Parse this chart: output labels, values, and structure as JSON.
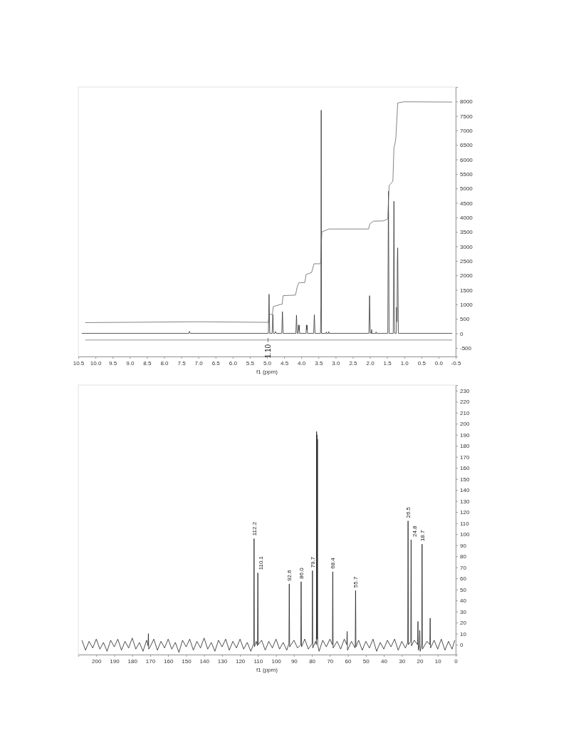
{
  "chart_data": [
    {
      "type": "line",
      "xlabel": "f1 (ppm)",
      "xlim": [
        10.5,
        -0.5
      ],
      "ylim": [
        -800,
        8500
      ],
      "xticks": [
        10.5,
        {
          "value": 10,
          "label": "10.0"
        },
        9.5,
        {
          "value": 9,
          "label": "9.0"
        },
        8.5,
        {
          "value": 8,
          "label": "8.0"
        },
        7.5,
        {
          "value": 7,
          "label": "7.0"
        },
        6.5,
        {
          "value": 6,
          "label": "6.0"
        },
        5.5,
        {
          "value": 5,
          "label": "5.0"
        },
        4.5,
        {
          "value": 4,
          "label": "4.0"
        },
        3.5,
        {
          "value": 3,
          "label": "3.0"
        },
        2.5,
        {
          "value": 2,
          "label": "2.0"
        },
        1.5,
        {
          "value": 1,
          "label": "1.0"
        },
        0.5,
        {
          "value": 0,
          "label": "0.0"
        },
        -0.5
      ],
      "yticks": [
        -500,
        0,
        500,
        1000,
        1500,
        2000,
        2500,
        3000,
        3500,
        4000,
        4500,
        5000,
        5500,
        6000,
        6500,
        7000,
        7500,
        8000
      ],
      "series": [
        {
          "type": "line",
          "color": "#333333",
          "x": [
            10.4,
            7.28,
            7.26,
            7.24,
            4.96,
            4.94,
            4.92,
            4.85,
            4.83,
            4.81,
            4.77,
            4.75,
            4.73,
            4.57,
            4.55,
            4.53,
            4.16,
            4.14,
            4.12,
            4.09,
            4.08,
            4.07,
            4.06,
            4.05,
            3.86,
            3.85,
            3.84,
            3.83,
            3.82,
            3.64,
            3.62,
            3.6,
            3.44,
            3.43,
            3.42,
            3.41,
            3.28,
            3.27,
            3.26,
            3.21,
            3.2,
            3.19,
            2.03,
            2.01,
            1.99,
            1.96,
            1.95,
            1.94,
            1.83,
            1.82,
            1.81,
            1.48,
            1.46,
            1.44,
            1.32,
            1.3,
            1.28,
            1.23,
            1.22,
            1.21,
            1.2,
            1.19,
            1.17,
            -0.4
          ],
          "values": [
            0,
            0,
            70,
            0,
            0,
            1350,
            0,
            0,
            650,
            0,
            0,
            60,
            0,
            0,
            750,
            0,
            0,
            630,
            0,
            0,
            290,
            100,
            280,
            0,
            0,
            290,
            120,
            280,
            0,
            0,
            640,
            0,
            0,
            950,
            7700,
            0,
            0,
            50,
            0,
            0,
            60,
            0,
            0,
            1300,
            0,
            0,
            130,
            0,
            0,
            50,
            0,
            0,
            4900,
            0,
            0,
            4560,
            0,
            0,
            900,
            400,
            2500,
            2950,
            0,
            0
          ]
        },
        {
          "type": "line",
          "color": "#666666",
          "x": [
            10.3,
            7,
            5,
            4.96,
            4.93,
            4.84,
            4.82,
            4.6,
            4.56,
            4.53,
            4.17,
            4.12,
            4.07,
            3.9,
            3.86,
            3.7,
            3.63,
            3.44,
            3.4,
            3.2,
            2.04,
            2,
            1.9,
            1.6,
            1.48,
            1.44,
            1.33,
            1.3,
            1.26,
            1.24,
            1.19,
            1,
            -0.4
          ],
          "values": [
            370,
            400,
            380,
            380,
            650,
            660,
            920,
            1000,
            1000,
            1300,
            1320,
            1600,
            1750,
            1750,
            2030,
            2100,
            2400,
            2400,
            3500,
            3600,
            3600,
            3780,
            3870,
            3880,
            3950,
            5100,
            5250,
            6400,
            6600,
            6800,
            7950,
            7990,
            7980
          ]
        },
        {
          "type": "line",
          "color": "#777777",
          "x": [
            10.3,
            -0.4
          ],
          "values": [
            -230,
            -230
          ]
        }
      ],
      "annotations": [
        {
          "text": "1.10",
          "x": 4.97,
          "y": -230
        }
      ]
    },
    {
      "type": "line",
      "xlabel": "f1 (ppm)",
      "xlim": [
        210,
        0
      ],
      "ylim": [
        -9,
        235
      ],
      "xticks": [
        200,
        190,
        180,
        170,
        160,
        150,
        140,
        130,
        120,
        110,
        100,
        90,
        80,
        70,
        60,
        50,
        40,
        30,
        20,
        10,
        0
      ],
      "yticks": [
        0,
        10,
        20,
        30,
        40,
        50,
        60,
        70,
        80,
        90,
        100,
        110,
        120,
        130,
        140,
        150,
        160,
        170,
        180,
        190,
        200,
        210,
        220,
        230
      ],
      "series": [
        {
          "type": "line",
          "color": "#222222",
          "x": [
            208,
            206,
            204,
            202,
            200,
            198,
            196,
            194,
            192,
            190,
            188,
            186,
            184,
            182,
            180,
            178,
            176,
            174,
            172,
            171.2,
            171,
            170.8,
            170,
            168,
            166,
            164,
            162,
            160,
            158,
            156,
            154,
            152,
            150,
            148,
            146,
            144,
            142,
            140,
            138,
            136,
            134,
            132,
            130,
            128,
            126,
            124,
            122,
            120,
            118,
            116,
            114,
            112.4,
            112.2,
            112,
            111,
            110.3,
            110.1,
            109.9,
            108,
            106,
            104,
            102,
            100,
            98,
            96,
            94,
            92.8,
            92.6,
            92.4,
            90,
            88,
            86.2,
            86,
            85.8,
            84,
            82,
            79.9,
            79.7,
            79.5,
            78,
            77.5,
            77.4,
            77.3,
            77.2,
            77.1,
            76.9,
            76.8,
            76,
            74,
            72,
            70,
            68.6,
            68.4,
            68.2,
            66,
            64,
            62,
            60.6,
            60.4,
            60.2,
            58,
            56,
            55.9,
            55.7,
            55.5,
            54,
            52,
            50,
            48,
            46,
            44,
            42,
            40,
            38,
            36,
            34,
            32,
            30,
            28,
            26.7,
            26.5,
            26.3,
            25,
            24.8,
            24.6,
            23,
            21.2,
            21,
            20.8,
            20.2,
            20,
            19.8,
            18.9,
            18.7,
            18.5,
            16,
            14.4,
            14.2,
            14,
            12,
            10,
            8,
            6,
            4,
            2,
            0.5
          ],
          "values": [
            4,
            -5,
            3,
            -3,
            5,
            -4,
            2,
            -6,
            4,
            -2,
            5,
            -5,
            3,
            -3,
            6,
            -4,
            2,
            -6,
            4,
            -1,
            10,
            -4,
            -2,
            5,
            -5,
            3,
            -3,
            5,
            -4,
            2,
            -7,
            4,
            -2,
            5,
            -5,
            3,
            -3,
            6,
            -4,
            2,
            -6,
            4,
            -2,
            5,
            -5,
            3,
            -3,
            5,
            -4,
            2,
            -6,
            1,
            96,
            -2,
            3,
            -1,
            65,
            0,
            4,
            -5,
            3,
            -3,
            5,
            -4,
            2,
            -5,
            1,
            55,
            -2,
            4,
            -3,
            0,
            57,
            -2,
            5,
            -4,
            1,
            67,
            -3,
            3,
            0,
            193,
            5,
            190,
            5,
            186,
            0,
            -6,
            4,
            -2,
            5,
            0,
            66,
            -3,
            3,
            -4,
            5,
            0,
            12,
            -5,
            3,
            -3,
            0,
            49,
            -2,
            4,
            -5,
            3,
            -3,
            5,
            -6,
            2,
            -4,
            4,
            -2,
            5,
            -5,
            3,
            -3,
            2,
            112,
            0,
            3,
            95,
            -1,
            4,
            0,
            21,
            -5,
            0,
            13,
            -6,
            0,
            91,
            -4,
            3,
            0,
            24,
            -3,
            4,
            -4,
            5,
            -5,
            3,
            -4,
            4
          ]
        }
      ],
      "annotations": [
        {
          "text": "112.2",
          "x": 112.2,
          "y": 96
        },
        {
          "text": "110.1",
          "x": 110.1,
          "y": 65
        },
        {
          "text": "92.6",
          "x": 92.6,
          "y": 55
        },
        {
          "text": "86.0",
          "x": 86.0,
          "y": 57
        },
        {
          "text": "79.7",
          "x": 79.7,
          "y": 67
        },
        {
          "text": "68.4",
          "x": 68.4,
          "y": 66
        },
        {
          "text": "55.7",
          "x": 55.7,
          "y": 49
        },
        {
          "text": "26.5",
          "x": 26.5,
          "y": 112
        },
        {
          "text": "24.8",
          "x": 24.8,
          "y": 95
        },
        {
          "text": "18.7",
          "x": 18.7,
          "y": 91
        }
      ]
    }
  ]
}
